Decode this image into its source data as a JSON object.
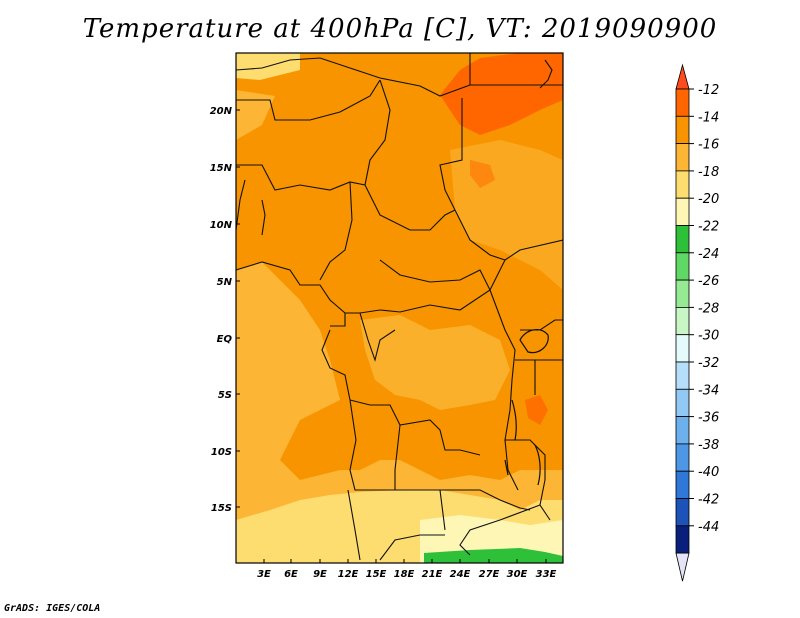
{
  "title": "Temperature at 400hPa [C], VT: 2019090900",
  "credit": "GrADS: IGES/COLA",
  "map": {
    "lat_ticks": [
      "20N",
      "15N",
      "10N",
      "5N",
      "EQ",
      "5S",
      "10S",
      "15S"
    ],
    "lon_ticks": [
      "3E",
      "6E",
      "9E",
      "12E",
      "15E",
      "18E",
      "21E",
      "24E",
      "27E",
      "30E",
      "33E"
    ]
  },
  "colorbar": {
    "levels": [
      "-12",
      "-14",
      "-16",
      "-18",
      "-20",
      "-22",
      "-24",
      "-26",
      "-28",
      "-30",
      "-32",
      "-34",
      "-36",
      "-38",
      "-40",
      "-42",
      "-44"
    ],
    "colors": [
      "#ff6600",
      "#f79400",
      "#fcb534",
      "#fddc70",
      "#fdf6b4",
      "#2fc03a",
      "#5fd865",
      "#96ea94",
      "#c9f6c5",
      "#e4fafb",
      "#b6defa",
      "#91c9f4",
      "#6cb0ee",
      "#4e96e6",
      "#2f78d8",
      "#1d52b8",
      "#0a1e7c"
    ],
    "over_color": "#ff4c1c",
    "under_color": "#e4e4f6"
  }
}
